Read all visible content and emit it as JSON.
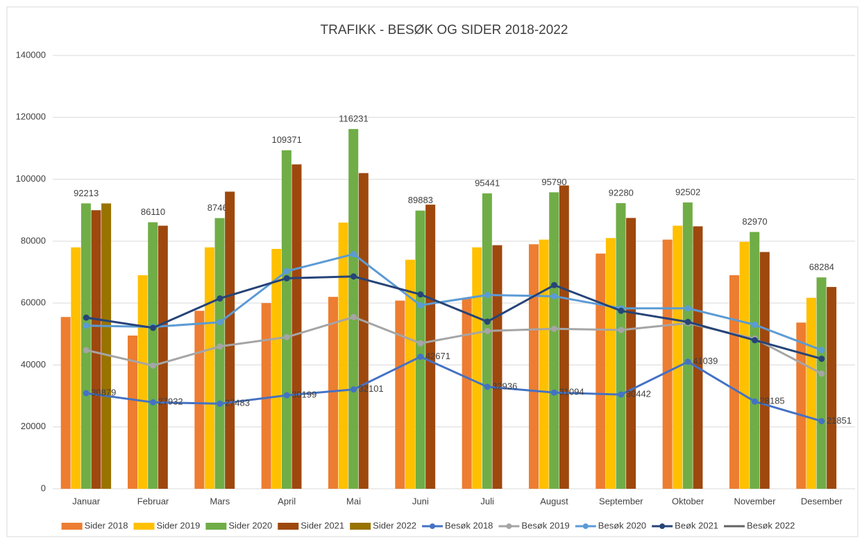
{
  "chart_data": {
    "type": "combo",
    "title": "TRAFIKK - BESØK OG SIDER 2018-2022",
    "categories": [
      "Januar",
      "Februar",
      "Mars",
      "April",
      "Mai",
      "Juni",
      "Juli",
      "August",
      "September",
      "Oktober",
      "November",
      "Desember"
    ],
    "ylim": [
      0,
      140000
    ],
    "yticks": [
      0,
      20000,
      40000,
      60000,
      80000,
      100000,
      120000,
      140000
    ],
    "grid": true,
    "legend": "bottom",
    "series": [
      {
        "name": "Sider 2018",
        "type": "bar",
        "color": "#ED7D31",
        "values": [
          55500,
          49500,
          57500,
          60000,
          62000,
          60800,
          61500,
          79000,
          76000,
          80500,
          69000,
          53700
        ]
      },
      {
        "name": "Sider 2019",
        "type": "bar",
        "color": "#FFC000",
        "values": [
          78000,
          69000,
          78000,
          77500,
          86000,
          74000,
          78000,
          80500,
          81000,
          85000,
          79800,
          61700
        ]
      },
      {
        "name": "Sider 2020",
        "type": "bar",
        "color": "#70AD47",
        "show_labels": true,
        "values": [
          92213,
          86110,
          87461,
          109371,
          116231,
          89883,
          95441,
          95790,
          92280,
          92502,
          82970,
          68284
        ]
      },
      {
        "name": "Sider 2021",
        "type": "bar",
        "color": "#9E480E",
        "values": [
          90000,
          85000,
          96000,
          104800,
          102000,
          91800,
          78700,
          98000,
          87500,
          84800,
          76500,
          65200
        ]
      },
      {
        "name": "Sider 2022",
        "type": "bar",
        "color": "#997300",
        "values": [
          92200,
          null,
          null,
          null,
          null,
          null,
          null,
          null,
          null,
          null,
          null,
          null
        ]
      },
      {
        "name": "Besøk 2018",
        "type": "line",
        "color": "#4472C4",
        "marker": true,
        "show_labels": true,
        "values": [
          30879,
          27932,
          27483,
          30199,
          32101,
          42671,
          32936,
          31094,
          30442,
          41039,
          28185,
          21851
        ]
      },
      {
        "name": "Besøk 2019",
        "type": "line",
        "color": "#A5A5A5",
        "marker": true,
        "values": [
          44800,
          39800,
          46000,
          49000,
          55500,
          47000,
          51000,
          51700,
          51300,
          53500,
          48500,
          37200
        ]
      },
      {
        "name": "Besøk 2020",
        "type": "line",
        "color": "#5B9BD5",
        "marker": true,
        "values": [
          52700,
          52300,
          53800,
          70300,
          75800,
          59300,
          62600,
          62200,
          58300,
          58300,
          53000,
          44800
        ]
      },
      {
        "name": "Beøk 2021",
        "type": "line",
        "color": "#264478",
        "marker": true,
        "values": [
          55300,
          52000,
          61500,
          68000,
          68600,
          62800,
          54000,
          65800,
          57500,
          53900,
          48000,
          42000
        ]
      },
      {
        "name": "Besøk 2022",
        "type": "line",
        "color": "#636363",
        "marker": false,
        "values": [
          null,
          null,
          null,
          null,
          null,
          null,
          null,
          null,
          null,
          null,
          null,
          null
        ]
      }
    ]
  }
}
